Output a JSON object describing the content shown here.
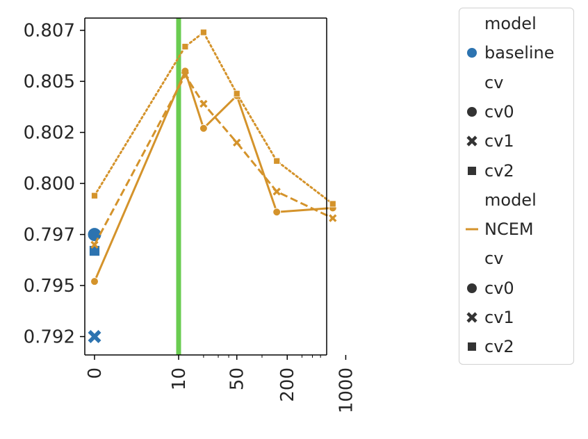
{
  "chart_data": {
    "type": "line",
    "title": "",
    "xlabel": "",
    "ylabel": "",
    "x_ticks": [
      {
        "value": 0,
        "label": "0"
      },
      {
        "value": 10,
        "label": "10"
      },
      {
        "value": 50,
        "label": "50"
      },
      {
        "value": 200,
        "label": "200"
      },
      {
        "value": 1000,
        "label": "1000"
      }
    ],
    "y_ticks": [
      {
        "value": 0.7921,
        "label": "0.792"
      },
      {
        "value": 0.7946,
        "label": "0.795"
      },
      {
        "value": 0.7971,
        "label": "0.797"
      },
      {
        "value": 0.7996,
        "label": "0.800"
      },
      {
        "value": 0.8021,
        "label": "0.802"
      },
      {
        "value": 0.8046,
        "label": "0.805"
      },
      {
        "value": 0.8071,
        "label": "0.807"
      }
    ],
    "ylim": [
      0.7912,
      0.8077
    ],
    "x_scale": "symlog",
    "grid": false,
    "vline": {
      "x": 10,
      "color": "#6acc50"
    },
    "series": [
      {
        "model": "baseline",
        "cv": "cv0",
        "color": "#2c73b0",
        "linestyle": "solid",
        "points": [
          {
            "x": 0,
            "y": 0.7971
          }
        ]
      },
      {
        "model": "baseline",
        "cv": "cv1",
        "color": "#2c73b0",
        "linestyle": "solid",
        "points": [
          {
            "x": 0,
            "y": 0.7921
          }
        ]
      },
      {
        "model": "baseline",
        "cv": "cv2",
        "color": "#2c73b0",
        "linestyle": "solid",
        "points": [
          {
            "x": 0,
            "y": 0.7963
          }
        ]
      },
      {
        "model": "NCEM",
        "cv": "cv0",
        "color": "#d4932b",
        "linestyle": "solid",
        "points": [
          {
            "x": 0,
            "y": 0.7948
          },
          {
            "x": 12,
            "y": 0.8051
          },
          {
            "x": 20,
            "y": 0.8023
          },
          {
            "x": 50,
            "y": 0.8039
          },
          {
            "x": 150,
            "y": 0.7982
          },
          {
            "x": 700,
            "y": 0.7984
          }
        ]
      },
      {
        "model": "NCEM",
        "cv": "cv1",
        "color": "#d4932b",
        "linestyle": "dashed",
        "points": [
          {
            "x": 0,
            "y": 0.7966
          },
          {
            "x": 12,
            "y": 0.8049
          },
          {
            "x": 20,
            "y": 0.8035
          },
          {
            "x": 50,
            "y": 0.8016
          },
          {
            "x": 150,
            "y": 0.7992
          },
          {
            "x": 700,
            "y": 0.7979
          }
        ]
      },
      {
        "model": "NCEM",
        "cv": "cv2",
        "color": "#d4932b",
        "linestyle": "dotted",
        "points": [
          {
            "x": 0,
            "y": 0.799
          },
          {
            "x": 12,
            "y": 0.8063
          },
          {
            "x": 20,
            "y": 0.807
          },
          {
            "x": 50,
            "y": 0.804
          },
          {
            "x": 150,
            "y": 0.8007
          },
          {
            "x": 700,
            "y": 0.7986
          }
        ]
      }
    ]
  },
  "legend": {
    "placement": "outside-right",
    "rows": [
      {
        "text": "model",
        "marker": "none",
        "color": "#262626"
      },
      {
        "text": "baseline",
        "marker": "circle",
        "color": "#2c73b0"
      },
      {
        "text": "cv",
        "marker": "none",
        "color": "#262626"
      },
      {
        "text": "cv0",
        "marker": "circle",
        "color": "#333333"
      },
      {
        "text": "cv1",
        "marker": "x",
        "color": "#333333"
      },
      {
        "text": "cv2",
        "marker": "square",
        "color": "#333333"
      },
      {
        "text": "model",
        "marker": "none",
        "color": "#262626"
      },
      {
        "text": "NCEM",
        "marker": "line",
        "color": "#d4932b"
      },
      {
        "text": "cv",
        "marker": "none",
        "color": "#262626"
      },
      {
        "text": "cv0",
        "marker": "circle",
        "color": "#333333"
      },
      {
        "text": "cv1",
        "marker": "x",
        "color": "#333333"
      },
      {
        "text": "cv2",
        "marker": "square",
        "color": "#333333"
      }
    ]
  }
}
